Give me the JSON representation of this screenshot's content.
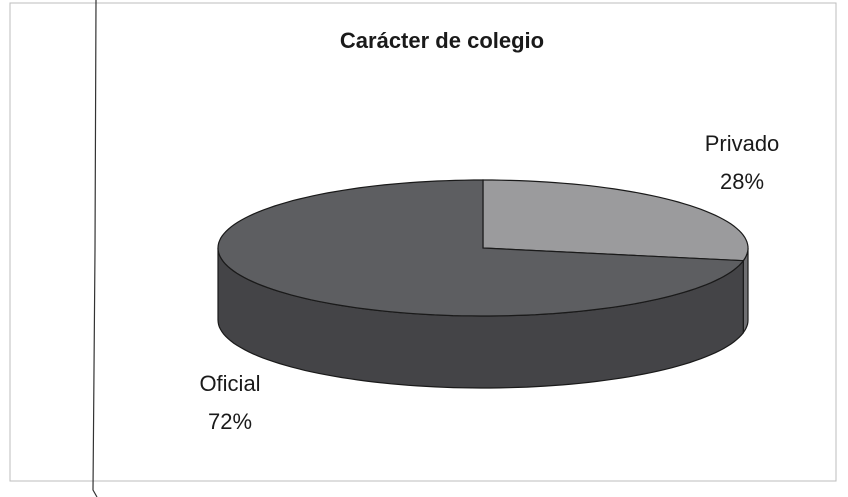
{
  "chart_data": {
    "type": "pie",
    "title": "Carácter de colegio",
    "categories": [
      "Privado",
      "Oficial"
    ],
    "values": [
      28,
      72
    ],
    "value_labels": [
      "28%",
      "72%"
    ],
    "colors": [
      "#9b9b9d",
      "#5d5e61"
    ],
    "side_colors": [
      "#6f6f72",
      "#444447"
    ]
  }
}
